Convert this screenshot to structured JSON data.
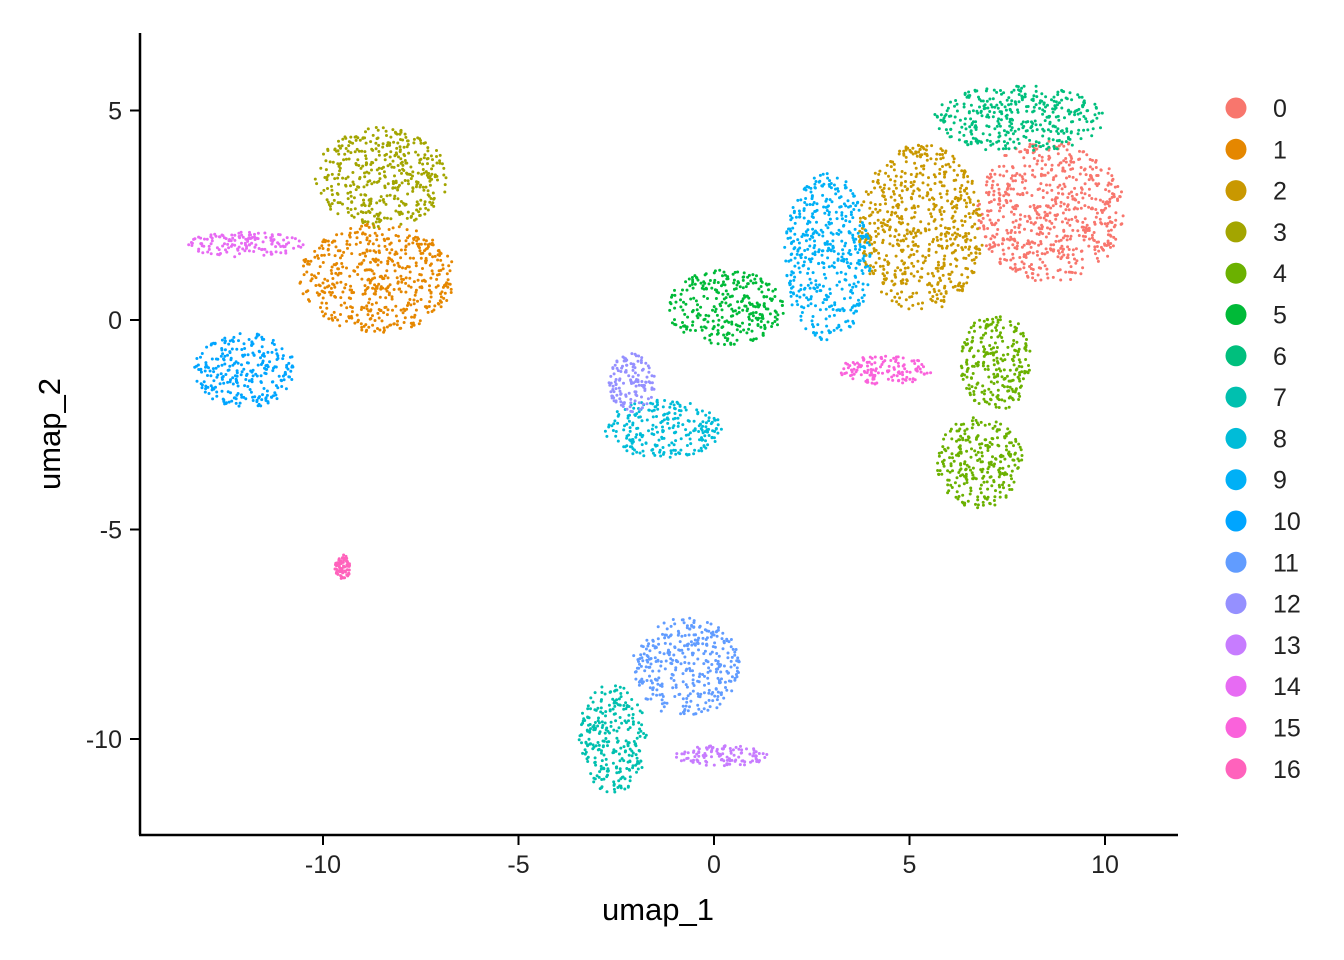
{
  "chart_data": {
    "type": "scatter",
    "title": "",
    "xlabel": "umap_1",
    "ylabel": "umap_2",
    "xlim": [
      -14.5,
      11.8
    ],
    "ylim": [
      -12.3,
      6.8
    ],
    "x_ticks": [
      -10,
      -5,
      0,
      5,
      10
    ],
    "x_tick_labels": [
      "-10",
      "-5",
      "0",
      "5",
      "10"
    ],
    "y_ticks": [
      -10,
      -5,
      0,
      5
    ],
    "y_tick_labels": [
      "-10",
      "-5",
      "0",
      "5"
    ],
    "grid": false,
    "legend_position": "right",
    "series": [
      {
        "name": "0",
        "color": "#F8766D",
        "clusters": [
          {
            "cx": 8.6,
            "cy": 2.6,
            "rx": 1.9,
            "ry": 1.7
          }
        ]
      },
      {
        "name": "1",
        "color": "#E58700",
        "clusters": [
          {
            "cx": -8.6,
            "cy": 1.0,
            "rx": 2.0,
            "ry": 1.3
          }
        ]
      },
      {
        "name": "2",
        "color": "#C99800",
        "clusters": [
          {
            "cx": 5.3,
            "cy": 2.2,
            "rx": 1.6,
            "ry": 2.0
          }
        ]
      },
      {
        "name": "3",
        "color": "#A3A500",
        "clusters": [
          {
            "cx": -8.5,
            "cy": 3.4,
            "rx": 1.7,
            "ry": 1.2
          }
        ]
      },
      {
        "name": "4",
        "color": "#6BB100",
        "clusters": [
          {
            "cx": 7.2,
            "cy": -1.0,
            "rx": 0.9,
            "ry": 1.2
          },
          {
            "cx": 6.8,
            "cy": -3.4,
            "rx": 1.1,
            "ry": 1.1
          }
        ]
      },
      {
        "name": "5",
        "color": "#00BA38",
        "clusters": [
          {
            "cx": 0.3,
            "cy": 0.3,
            "rx": 1.5,
            "ry": 0.9
          }
        ]
      },
      {
        "name": "6",
        "color": "#00BF7D",
        "clusters": [
          {
            "cx": 7.8,
            "cy": 4.8,
            "rx": 2.2,
            "ry": 0.8
          }
        ]
      },
      {
        "name": "7",
        "color": "#00C0AF",
        "clusters": [
          {
            "cx": -2.6,
            "cy": -10.0,
            "rx": 0.9,
            "ry": 1.3
          }
        ]
      },
      {
        "name": "8",
        "color": "#00BCD8",
        "clusters": [
          {
            "cx": -1.3,
            "cy": -2.6,
            "rx": 1.5,
            "ry": 0.7
          }
        ]
      },
      {
        "name": "9",
        "color": "#00B0F6",
        "clusters": [
          {
            "cx": 2.9,
            "cy": 1.5,
            "rx": 1.1,
            "ry": 2.0
          }
        ]
      },
      {
        "name": "10",
        "color": "#00A5FF",
        "clusters": [
          {
            "cx": -12.0,
            "cy": -1.2,
            "rx": 1.3,
            "ry": 0.9
          }
        ]
      },
      {
        "name": "11",
        "color": "#619CFF",
        "clusters": [
          {
            "cx": -0.7,
            "cy": -8.3,
            "rx": 1.4,
            "ry": 1.2
          }
        ]
      },
      {
        "name": "12",
        "color": "#9590FF",
        "clusters": [
          {
            "cx": -2.1,
            "cy": -1.5,
            "rx": 0.6,
            "ry": 0.7
          }
        ]
      },
      {
        "name": "13",
        "color": "#C77CFF",
        "clusters": [
          {
            "cx": 0.2,
            "cy": -10.4,
            "rx": 1.2,
            "ry": 0.25
          }
        ]
      },
      {
        "name": "14",
        "color": "#E76BF3",
        "clusters": [
          {
            "cx": -12.0,
            "cy": 1.8,
            "rx": 1.5,
            "ry": 0.3
          }
        ]
      },
      {
        "name": "15",
        "color": "#FA62DB",
        "clusters": [
          {
            "cx": 4.4,
            "cy": -1.2,
            "rx": 1.2,
            "ry": 0.35
          }
        ]
      },
      {
        "name": "16",
        "color": "#FF62BC",
        "clusters": [
          {
            "cx": -9.5,
            "cy": -5.9,
            "rx": 0.2,
            "ry": 0.3
          }
        ]
      }
    ]
  }
}
